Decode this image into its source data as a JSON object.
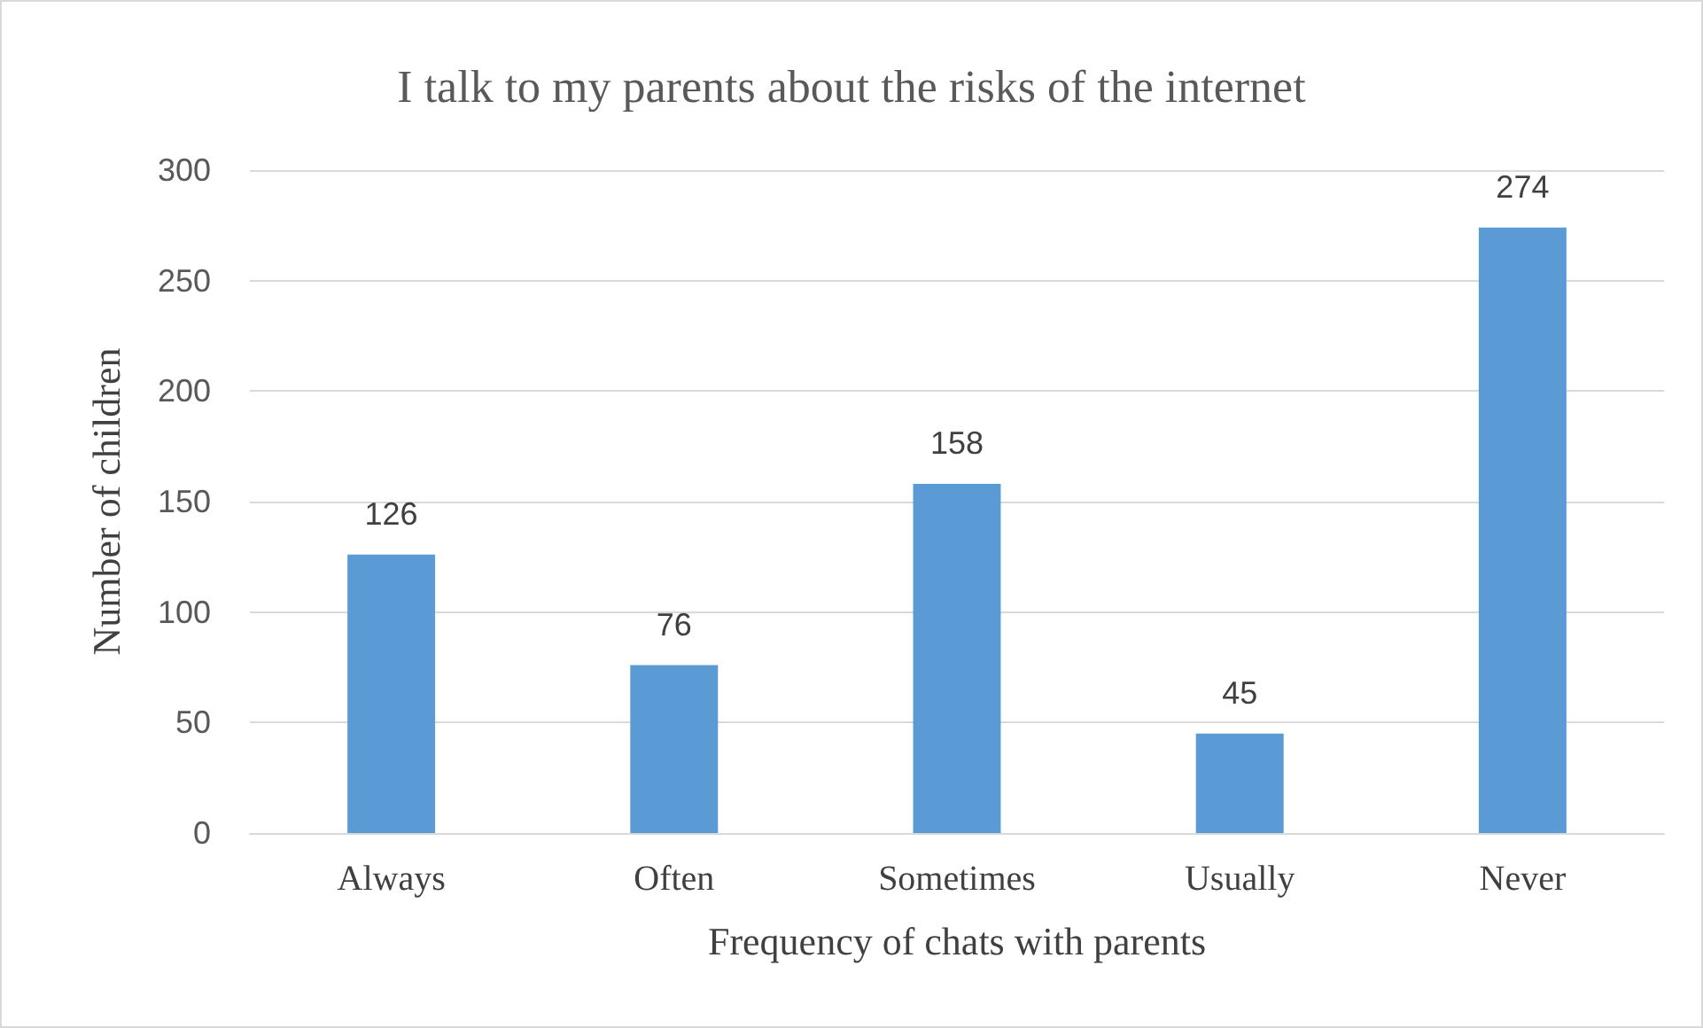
{
  "chart_data": {
    "type": "bar",
    "title": "I talk to my parents about the risks of the internet",
    "xlabel": "Frequency of chats with parents",
    "ylabel": "Number of children",
    "categories": [
      "Always",
      "Often",
      "Sometimes",
      "Usually",
      "Never"
    ],
    "values": [
      126,
      76,
      158,
      45,
      274
    ],
    "color": "#5b9bd5",
    "ylim": [
      0,
      300
    ],
    "yticks": [
      0,
      50,
      100,
      150,
      200,
      250,
      300
    ],
    "grid": "y",
    "data_labels": true
  }
}
